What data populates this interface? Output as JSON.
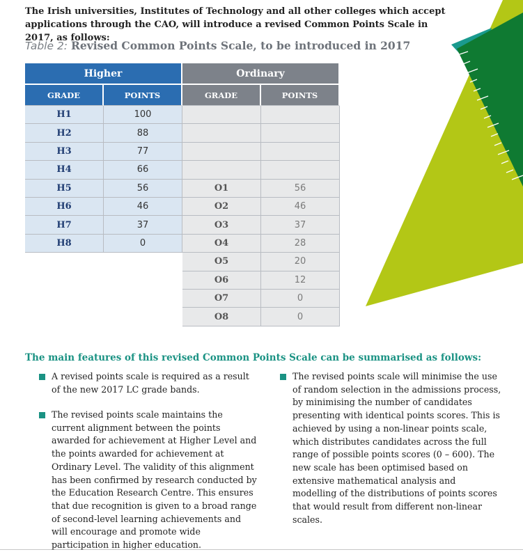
{
  "intro": "The Irish universities, Institutes of Technology and all other colleges which accept applications through the CAO, will introduce a revised Common Points Scale in 2017, as follows:",
  "caption": {
    "label": "Table 2:",
    "title": "Revised Common Points Scale, to be introduced in 2017"
  },
  "table": {
    "higher": {
      "title": "Higher",
      "columns": [
        "GRADE",
        "POINTS"
      ],
      "rows": [
        [
          "H1",
          "100"
        ],
        [
          "H2",
          "88"
        ],
        [
          "H3",
          "77"
        ],
        [
          "H4",
          "66"
        ],
        [
          "H5",
          "56"
        ],
        [
          "H6",
          "46"
        ],
        [
          "H7",
          "37"
        ],
        [
          "H8",
          "0"
        ]
      ]
    },
    "ordinary": {
      "title": "Ordinary",
      "columns": [
        "GRADE",
        "POINTS"
      ],
      "rows": [
        [
          "O1",
          "56"
        ],
        [
          "O2",
          "46"
        ],
        [
          "O3",
          "37"
        ],
        [
          "O4",
          "28"
        ],
        [
          "O5",
          "20"
        ],
        [
          "O6",
          "12"
        ],
        [
          "O7",
          "0"
        ],
        [
          "O8",
          "0"
        ]
      ]
    }
  },
  "features": {
    "heading": "The main features of this revised Common Points Scale can be summarised as follows:",
    "left": [
      "A revised points scale is required as a result of the new 2017 LC grade bands.",
      "The revised points scale maintains the current alignment between the points awarded for achievement at Higher Level and the points awarded for achievement at Ordinary Level. The validity of this alignment has been confirmed by research conducted by the Education Research Centre. This ensures that due recognition is given to a broad range of second-level learning achievements and will encourage and promote wide participation in higher education."
    ],
    "right": [
      "The revised points scale will minimise the use of random selection in the admissions process, by minimising the number of candidates presenting with identical points scores. This is achieved by using a non-linear points scale, which distributes candidates across the full range of possible points scores (0 – 600). The new scale has been optimised based on extensive mathematical analysis and modelling of the distributions of points scores that would result from different non-linear scales."
    ]
  }
}
